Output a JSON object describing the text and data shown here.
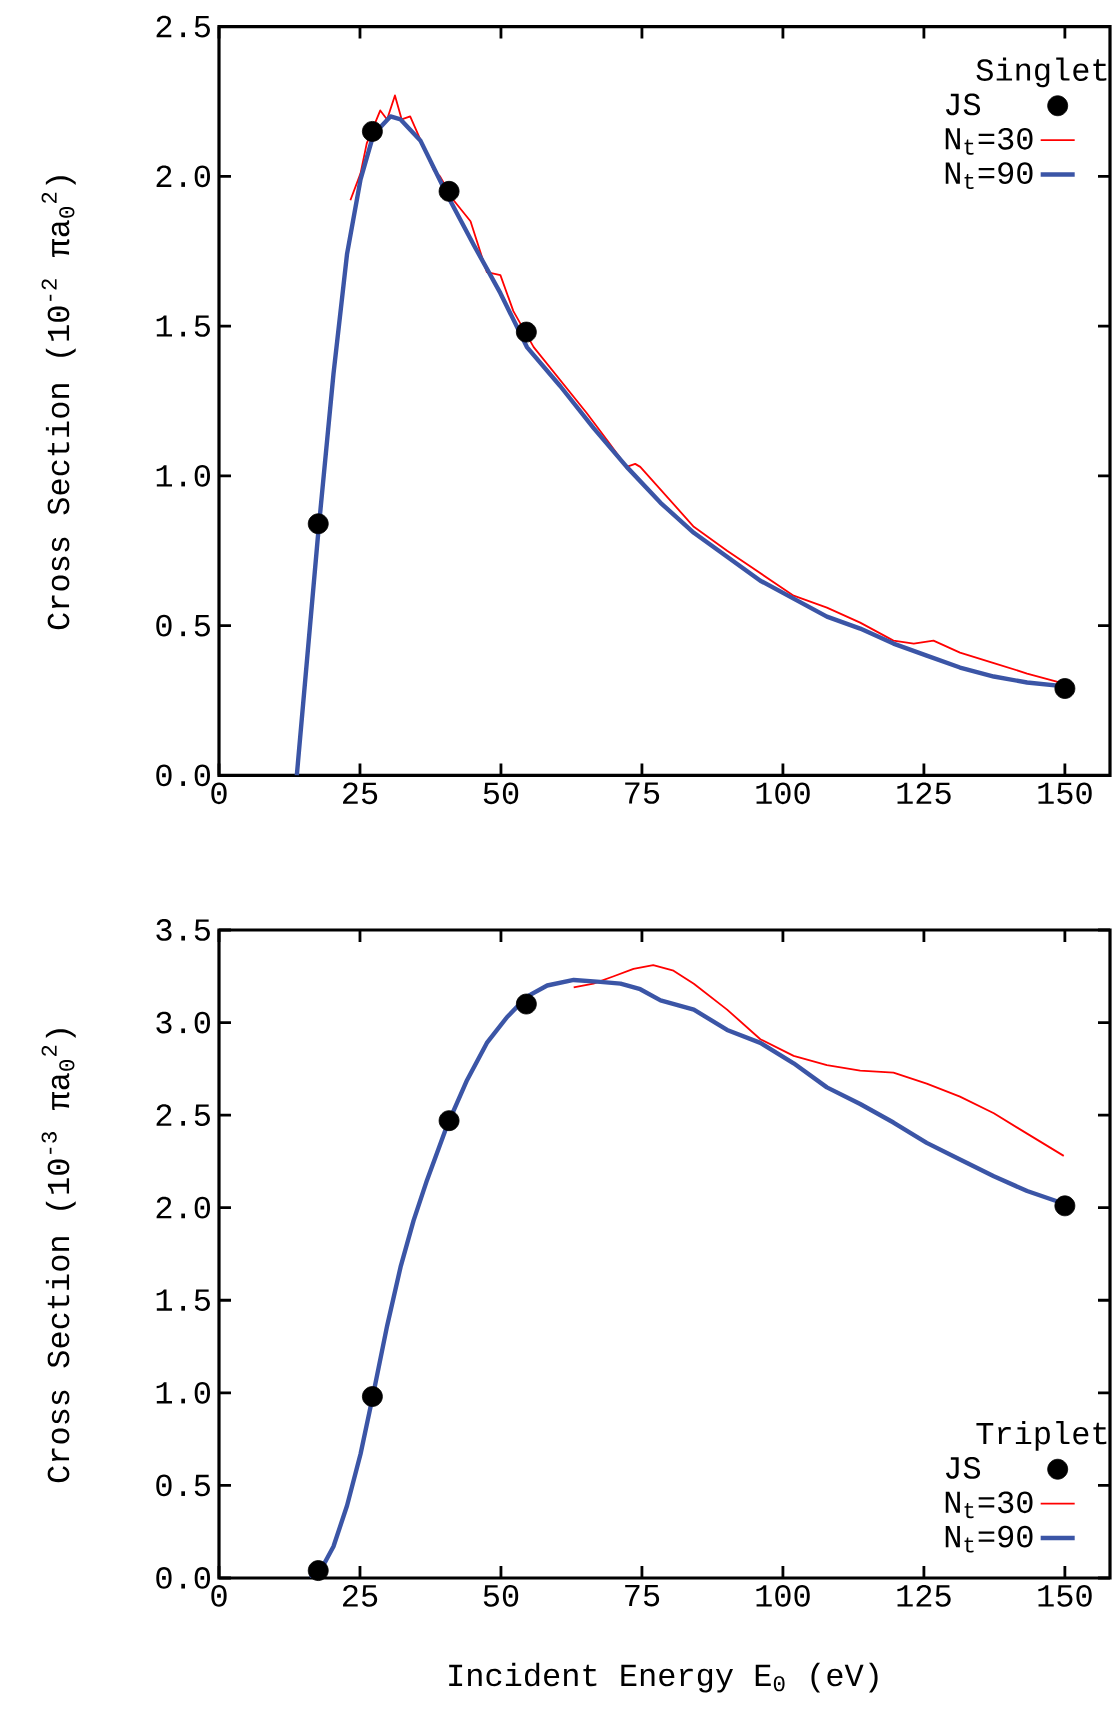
{
  "chart_data": [
    {
      "type": "line",
      "ylabel": "Cross Section (10$^{-2}$ πa$_{0}$$^{2}$)",
      "legend_title": "Singlet",
      "legend": "top right",
      "xlim": [
        0,
        158
      ],
      "xticks": [
        0,
        25,
        50,
        75,
        100,
        125,
        150
      ],
      "ylim": [
        0,
        2.5
      ],
      "yticks": [
        {
          "value": 0,
          "label": "0.0"
        },
        0.5,
        {
          "value": 1,
          "label": "1.0"
        },
        1.5,
        {
          "value": 2,
          "label": "2.0"
        },
        2.5
      ],
      "series": [
        {
          "name": "JS",
          "type": "scatter",
          "marker": "circle",
          "color": "#000000",
          "x": [
            17.6,
            27.2,
            40.8,
            54.5,
            150
          ],
          "values": [
            0.84,
            2.15,
            1.95,
            1.48,
            0.29
          ]
        },
        {
          "name": "N$_{t}$=30",
          "color": "#ff0000",
          "x": [
            23.3,
            25.1,
            26.2,
            28.6,
            29.8,
            31.2,
            32.4,
            33.9,
            36.3,
            38.1,
            39.2,
            41.6,
            44.6,
            47.5,
            49.9,
            52.2,
            55.8,
            60.5,
            65.2,
            68.8,
            72.3,
            73.8,
            74.7,
            78.3,
            84.2,
            90.1,
            96,
            101.9,
            107.8,
            113.7,
            119.6,
            123.2,
            126.7,
            131.4,
            137.4,
            143.3,
            149.2
          ],
          "values": [
            1.92,
            2.01,
            2.11,
            2.22,
            2.19,
            2.27,
            2.19,
            2.2,
            null,
            2.02,
            2.0,
            1.92,
            1.85,
            1.68,
            1.67,
            1.55,
            1.43,
            null,
            1.21,
            1.12,
            1.03,
            1.04,
            1.03,
            null,
            0.83,
            0.75,
            null,
            0.6,
            0.56,
            0.51,
            0.45,
            0.44,
            0.45,
            0.41,
            0.375,
            0.34,
            0.31
          ]
        },
        {
          "name": "N$_{t}$=90",
          "color": "#3b55a6",
          "x": [
            13.8,
            17.6,
            20.3,
            22.7,
            25.1,
            27.4,
            30.4,
            32.2,
            35.7,
            40.4,
            45.2,
            49.9,
            54.6,
            60.5,
            66.4,
            72.3,
            78.3,
            84.2,
            90.1,
            96,
            101.9,
            107.8,
            113.7,
            119.6,
            125.5,
            131.4,
            137.4,
            143.3,
            150
          ],
          "values": [
            0,
            0.81,
            1.34,
            1.74,
            1.99,
            2.14,
            2.2,
            2.19,
            2.12,
            1.94,
            1.77,
            1.61,
            1.43,
            1.3,
            1.16,
            1.03,
            0.91,
            0.81,
            0.73,
            0.65,
            0.59,
            0.53,
            0.49,
            0.44,
            0.4,
            0.36,
            0.33,
            0.31,
            0.297
          ]
        }
      ]
    },
    {
      "type": "line",
      "xlabel": "Incident Energy E$_{0}$ (eV)",
      "ylabel": "Cross Section (10$^{-3}$ πa$_{0}$$^{2}$)",
      "legend_title": "Triplet",
      "legend": "bottom right",
      "xlim": [
        0,
        158
      ],
      "xticks": [
        0,
        25,
        50,
        75,
        100,
        125,
        150
      ],
      "ylim": [
        0,
        3.5
      ],
      "yticks": [
        {
          "value": 0,
          "label": "0.0"
        },
        0.5,
        {
          "value": 1,
          "label": "1.0"
        },
        1.5,
        {
          "value": 2,
          "label": "2.0"
        },
        2.5,
        {
          "value": 3,
          "label": "3.0"
        },
        3.5
      ],
      "series": [
        {
          "name": "JS",
          "type": "scatter",
          "marker": "circle",
          "color": "#000000",
          "x": [
            17.6,
            27.2,
            40.8,
            54.5,
            150
          ],
          "values": [
            0.04,
            0.98,
            2.47,
            3.1,
            2.01
          ]
        },
        {
          "name": "N$_{t}$=30",
          "color": "#ff0000",
          "x": [
            62.9,
            66.4,
            70,
            73.5,
            77,
            80.6,
            84.2,
            90.1,
            96,
            101.9,
            107.8,
            113.7,
            119.6,
            125.5,
            131.4,
            137.4,
            143.3,
            149.8
          ],
          "values": [
            3.19,
            3.21,
            3.25,
            3.29,
            3.31,
            3.28,
            3.21,
            3.07,
            2.91,
            2.82,
            2.77,
            2.74,
            2.73,
            2.67,
            2.6,
            2.51,
            2.4,
            2.28
          ]
        },
        {
          "name": "N$_{t}$=90",
          "color": "#3b55a6",
          "x": [
            16.2,
            18,
            20.3,
            22.7,
            25.1,
            27.4,
            29.8,
            32.2,
            34.5,
            36.9,
            40.4,
            44,
            47.5,
            51.1,
            54.6,
            58.2,
            62.9,
            67.6,
            71.2,
            74.7,
            78.3,
            84.2,
            90.1,
            96,
            101.9,
            107.8,
            113.7,
            119.6,
            125.5,
            131.4,
            137.4,
            143.3,
            150
          ],
          "values": [
            0,
            0.04,
            0.17,
            0.39,
            0.67,
            1.0,
            1.36,
            1.68,
            1.93,
            2.15,
            2.44,
            2.69,
            2.89,
            3.03,
            3.14,
            3.2,
            3.23,
            3.22,
            3.21,
            3.18,
            3.12,
            3.07,
            2.96,
            2.89,
            2.78,
            2.65,
            2.56,
            2.46,
            2.35,
            2.26,
            2.17,
            2.09,
            2.02
          ]
        }
      ]
    }
  ]
}
